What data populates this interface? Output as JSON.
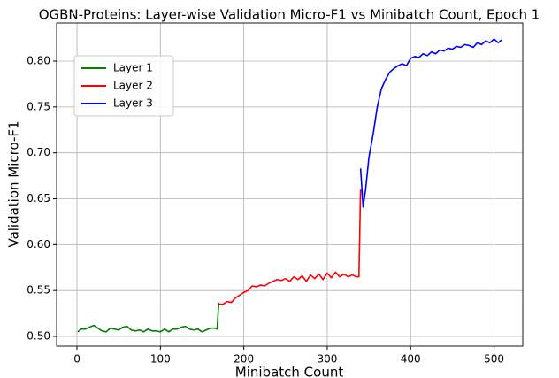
{
  "chart_data": {
    "type": "line",
    "title": "OGBN-Proteins: Layer-wise Validation Micro-F1 vs Minibatch Count, Epoch 1",
    "xlabel": "Minibatch Count",
    "ylabel": "Validation Micro-F1",
    "xlim": [
      -24.4,
      534.4
    ],
    "ylim": [
      0.4894,
      0.8415
    ],
    "xticks": [
      0,
      100,
      200,
      300,
      400,
      500
    ],
    "yticks": [
      {
        "value": 0.5,
        "label": "0.50"
      },
      {
        "value": 0.55,
        "label": "0.55"
      },
      {
        "value": 0.6,
        "label": "0.60"
      },
      {
        "value": 0.65,
        "label": "0.65"
      },
      {
        "value": 0.7,
        "label": "0.70"
      },
      {
        "value": 0.75,
        "label": "0.75"
      },
      {
        "value": 0.8,
        "label": "0.80"
      }
    ],
    "grid": true,
    "legend": "upper left",
    "series": [
      {
        "name": "Layer 1",
        "color": "#008000",
        "x": [
          1,
          5,
          10,
          15,
          20,
          25,
          30,
          35,
          40,
          45,
          50,
          55,
          60,
          65,
          70,
          75,
          80,
          85,
          90,
          95,
          100,
          105,
          110,
          115,
          120,
          125,
          130,
          135,
          140,
          145,
          150,
          155,
          160,
          165,
          168,
          170
        ],
        "values": [
          0.505,
          0.508,
          0.508,
          0.51,
          0.512,
          0.509,
          0.506,
          0.505,
          0.509,
          0.508,
          0.507,
          0.51,
          0.511,
          0.507,
          0.506,
          0.507,
          0.505,
          0.508,
          0.506,
          0.506,
          0.505,
          0.508,
          0.505,
          0.508,
          0.508,
          0.51,
          0.511,
          0.508,
          0.507,
          0.508,
          0.505,
          0.507,
          0.509,
          0.509,
          0.508,
          0.537
        ]
      },
      {
        "name": "Layer 2",
        "color": "#ff0000",
        "x": [
          170,
          175,
          180,
          185,
          190,
          195,
          200,
          205,
          210,
          215,
          220,
          225,
          230,
          235,
          240,
          245,
          250,
          255,
          260,
          265,
          270,
          275,
          280,
          285,
          290,
          295,
          300,
          305,
          310,
          315,
          320,
          325,
          330,
          335,
          338,
          340
        ],
        "values": [
          0.535,
          0.535,
          0.538,
          0.537,
          0.542,
          0.545,
          0.548,
          0.55,
          0.555,
          0.554,
          0.556,
          0.555,
          0.558,
          0.56,
          0.562,
          0.561,
          0.563,
          0.56,
          0.565,
          0.562,
          0.566,
          0.56,
          0.567,
          0.563,
          0.568,
          0.562,
          0.569,
          0.564,
          0.57,
          0.565,
          0.568,
          0.565,
          0.567,
          0.565,
          0.565,
          0.66
        ]
      },
      {
        "name": "Layer 3",
        "color": "#0000ff",
        "x": [
          340,
          343,
          346,
          350,
          355,
          360,
          365,
          370,
          375,
          380,
          385,
          390,
          395,
          400,
          405,
          410,
          415,
          420,
          425,
          430,
          435,
          440,
          445,
          450,
          455,
          460,
          465,
          470,
          475,
          480,
          485,
          490,
          495,
          500,
          505,
          509
        ],
        "values": [
          0.683,
          0.641,
          0.66,
          0.695,
          0.72,
          0.75,
          0.77,
          0.78,
          0.788,
          0.792,
          0.795,
          0.797,
          0.795,
          0.803,
          0.805,
          0.804,
          0.808,
          0.806,
          0.81,
          0.808,
          0.812,
          0.811,
          0.814,
          0.813,
          0.816,
          0.815,
          0.818,
          0.817,
          0.815,
          0.82,
          0.818,
          0.822,
          0.82,
          0.824,
          0.82,
          0.823
        ]
      }
    ]
  }
}
